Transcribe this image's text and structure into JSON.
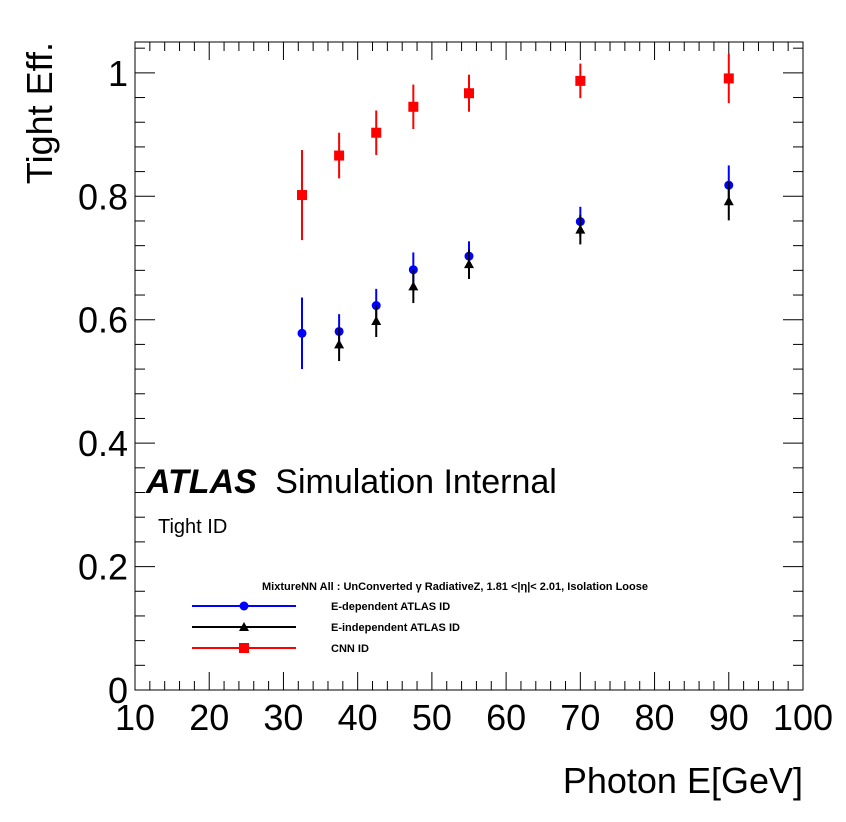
{
  "chart_data": {
    "type": "scatter",
    "xlabel": "Photon E[GeV]",
    "ylabel": "Tight Eff.",
    "xlim": [
      10,
      100
    ],
    "ylim": [
      0,
      1.05
    ],
    "xticks": [
      "10",
      "20",
      "30",
      "40",
      "50",
      "60",
      "70",
      "80",
      "90",
      "100"
    ],
    "yticks": [
      "0",
      "0.2",
      "0.4",
      "0.6",
      "0.8",
      "1"
    ],
    "grid": false,
    "legend_position": "bottom-left",
    "annotations": {
      "atlas": "ATLAS",
      "atlas_suffix": "Simulation Internal",
      "subtitle": "Tight ID",
      "legend_header": "MixtureNN All : UnConverted γ RadiativeZ, 1.81 <|η|< 2.01, Isolation Loose"
    },
    "series": [
      {
        "name": "E-dependent ATLAS ID",
        "color": "#0000ff",
        "marker": "circle",
        "x": [
          32.5,
          37.5,
          42.5,
          47.5,
          55,
          70,
          90
        ],
        "y": [
          0.578,
          0.581,
          0.623,
          0.681,
          0.703,
          0.759,
          0.818
        ],
        "yerr": [
          0.058,
          0.028,
          0.027,
          0.028,
          0.024,
          0.024,
          0.032
        ]
      },
      {
        "name": "E-independent ATLAS ID",
        "color": "#000000",
        "marker": "triangle",
        "x": [
          37.5,
          42.5,
          47.5,
          55,
          70,
          90
        ],
        "y": [
          0.56,
          0.598,
          0.654,
          0.69,
          0.746,
          0.792
        ],
        "yerr": [
          0.027,
          0.026,
          0.027,
          0.024,
          0.024,
          0.031
        ]
      },
      {
        "name": "CNN ID",
        "color": "#ff0000",
        "marker": "square",
        "x": [
          32.5,
          37.5,
          42.5,
          47.5,
          55,
          70,
          90
        ],
        "y": [
          0.802,
          0.866,
          0.903,
          0.945,
          0.967,
          0.987,
          0.991
        ],
        "yerr": [
          0.073,
          0.037,
          0.036,
          0.036,
          0.03,
          0.028,
          0.04
        ]
      }
    ]
  }
}
